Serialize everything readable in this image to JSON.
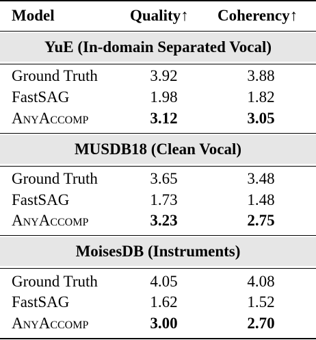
{
  "table": {
    "headers": {
      "model": "Model",
      "quality": "Quality↑",
      "coherency": "Coherency↑"
    },
    "sections": [
      {
        "title": "YuE (In-domain Separated Vocal)",
        "rows": [
          {
            "model": "Ground Truth",
            "quality": "3.92",
            "coherency": "3.88"
          },
          {
            "model": "FastSAG",
            "quality": "1.98",
            "coherency": "1.82"
          },
          {
            "model": "AnyAccomp",
            "quality": "3.12",
            "coherency": "3.05"
          }
        ]
      },
      {
        "title": "MUSDB18 (Clean Vocal)",
        "rows": [
          {
            "model": "Ground Truth",
            "quality": "3.65",
            "coherency": "3.48"
          },
          {
            "model": "FastSAG",
            "quality": "1.73",
            "coherency": "1.48"
          },
          {
            "model": "AnyAccomp",
            "quality": "3.23",
            "coherency": "2.75"
          }
        ]
      },
      {
        "title": "MoisesDB (Instruments)",
        "rows": [
          {
            "model": "Ground Truth",
            "quality": "4.05",
            "coherency": "4.08"
          },
          {
            "model": "FastSAG",
            "quality": "1.62",
            "coherency": "1.52"
          },
          {
            "model": "AnyAccomp",
            "quality": "3.00",
            "coherency": "2.70"
          }
        ]
      }
    ]
  }
}
